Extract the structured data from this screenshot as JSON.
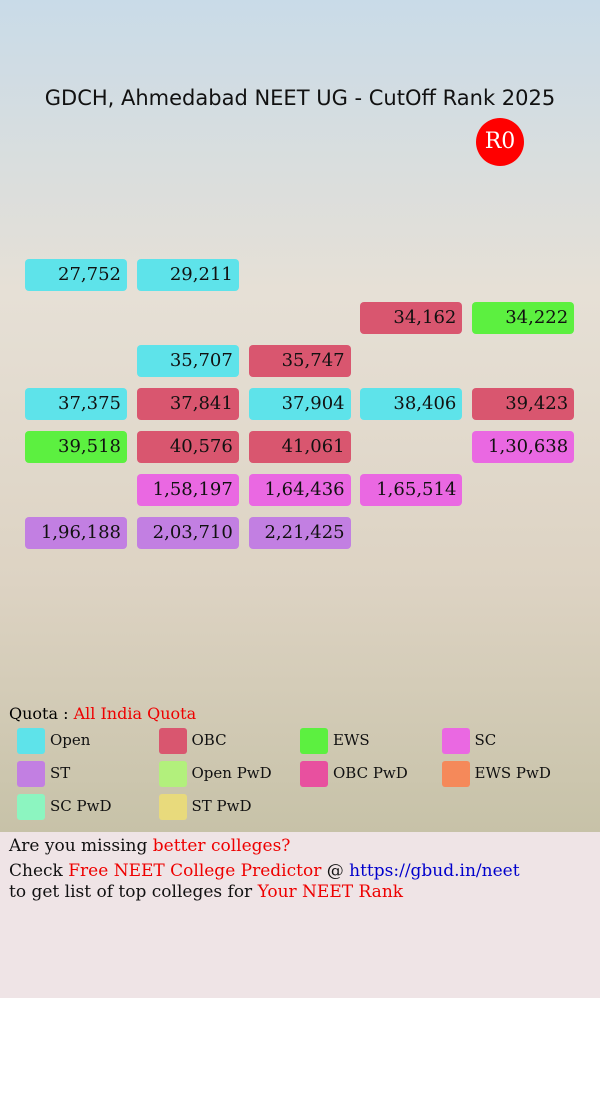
{
  "header": {
    "title": "GDCH, Ahmedabad NEET UG - CutOff Rank 2025",
    "round": "R0"
  },
  "grid": {
    "rows": [
      [
        {
          "text": "27,752",
          "color": "#5ee3ea"
        },
        {
          "text": "29,211",
          "color": "#5ee3ea"
        },
        null,
        null,
        null
      ],
      [
        null,
        null,
        null,
        {
          "text": "34,162",
          "color": "#d9566f"
        },
        {
          "text": "34,222",
          "color": "#5cf040"
        }
      ],
      [
        null,
        {
          "text": "35,707",
          "color": "#5ee3ea"
        },
        {
          "text": "35,747",
          "color": "#d9566f"
        },
        null,
        null
      ],
      [
        {
          "text": "37,375",
          "color": "#5ee3ea"
        },
        {
          "text": "37,841",
          "color": "#d9566f"
        },
        {
          "text": "37,904",
          "color": "#5ee3ea"
        },
        {
          "text": "38,406",
          "color": "#5ee3ea"
        },
        {
          "text": "39,423",
          "color": "#d9566f"
        }
      ],
      [
        {
          "text": "39,518",
          "color": "#5cf040"
        },
        {
          "text": "40,576",
          "color": "#d9566f"
        },
        {
          "text": "41,061",
          "color": "#d9566f"
        },
        null,
        {
          "text": "1,30,638",
          "color": "#ea68e2"
        }
      ],
      [
        null,
        {
          "text": "1,58,197",
          "color": "#ea68e2"
        },
        {
          "text": "1,64,436",
          "color": "#ea68e2"
        },
        {
          "text": "1,65,514",
          "color": "#ea68e2"
        },
        null
      ],
      [
        {
          "text": "1,96,188",
          "color": "#c27fe2"
        },
        {
          "text": "2,03,710",
          "color": "#c27fe2"
        },
        {
          "text": "2,21,425",
          "color": "#c27fe2"
        },
        null,
        null
      ]
    ]
  },
  "quota": {
    "label": "Quota :",
    "value": "All India Quota"
  },
  "legend": [
    {
      "name": "Open",
      "color": "#5ee3ea"
    },
    {
      "name": "OBC",
      "color": "#d9566f"
    },
    {
      "name": "EWS",
      "color": "#5cf040"
    },
    {
      "name": "SC",
      "color": "#ea68e2"
    },
    {
      "name": "ST",
      "color": "#c27fe2"
    },
    {
      "name": "Open PwD",
      "color": "#b2f07c"
    },
    {
      "name": "OBC PwD",
      "color": "#e8509f"
    },
    {
      "name": "EWS PwD",
      "color": "#f5895a"
    },
    {
      "name": "SC PwD",
      "color": "#8cf5c0"
    },
    {
      "name": "ST PwD",
      "color": "#e8da7c"
    }
  ],
  "footer": {
    "line1": [
      "Are you missing",
      "better colleges?"
    ],
    "line2": [
      "Check",
      "Free NEET College Predictor",
      "@",
      "https://gbud.in/neet"
    ],
    "line3": [
      "to get list of top colleges for",
      "Your NEET Rank"
    ]
  }
}
